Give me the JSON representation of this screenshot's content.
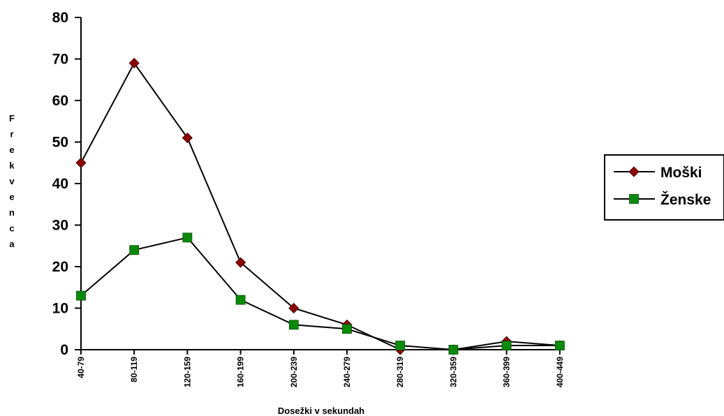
{
  "chart_data": {
    "type": "line",
    "title": "",
    "xlabel": "Dosežki v sekundah",
    "ylabel": "Frekvenca",
    "ylim": [
      0,
      80
    ],
    "yticks": [
      0,
      10,
      20,
      30,
      40,
      50,
      60,
      70,
      80
    ],
    "grid": false,
    "legend_position": "right",
    "categories": [
      "40-79",
      "80-119",
      "120-159",
      "160-199",
      "200-239",
      "240-279",
      "280-319",
      "320-359",
      "360-399",
      "400-449"
    ],
    "series": [
      {
        "name": "Moški",
        "marker": "diamond",
        "color": "#8b0000",
        "values": [
          45,
          69,
          51,
          21,
          10,
          6,
          0,
          0,
          2,
          1
        ]
      },
      {
        "name": "Ženske",
        "marker": "square",
        "color": "#0a8a0a",
        "values": [
          13,
          24,
          27,
          12,
          6,
          5,
          1,
          0,
          1,
          1
        ]
      }
    ]
  }
}
